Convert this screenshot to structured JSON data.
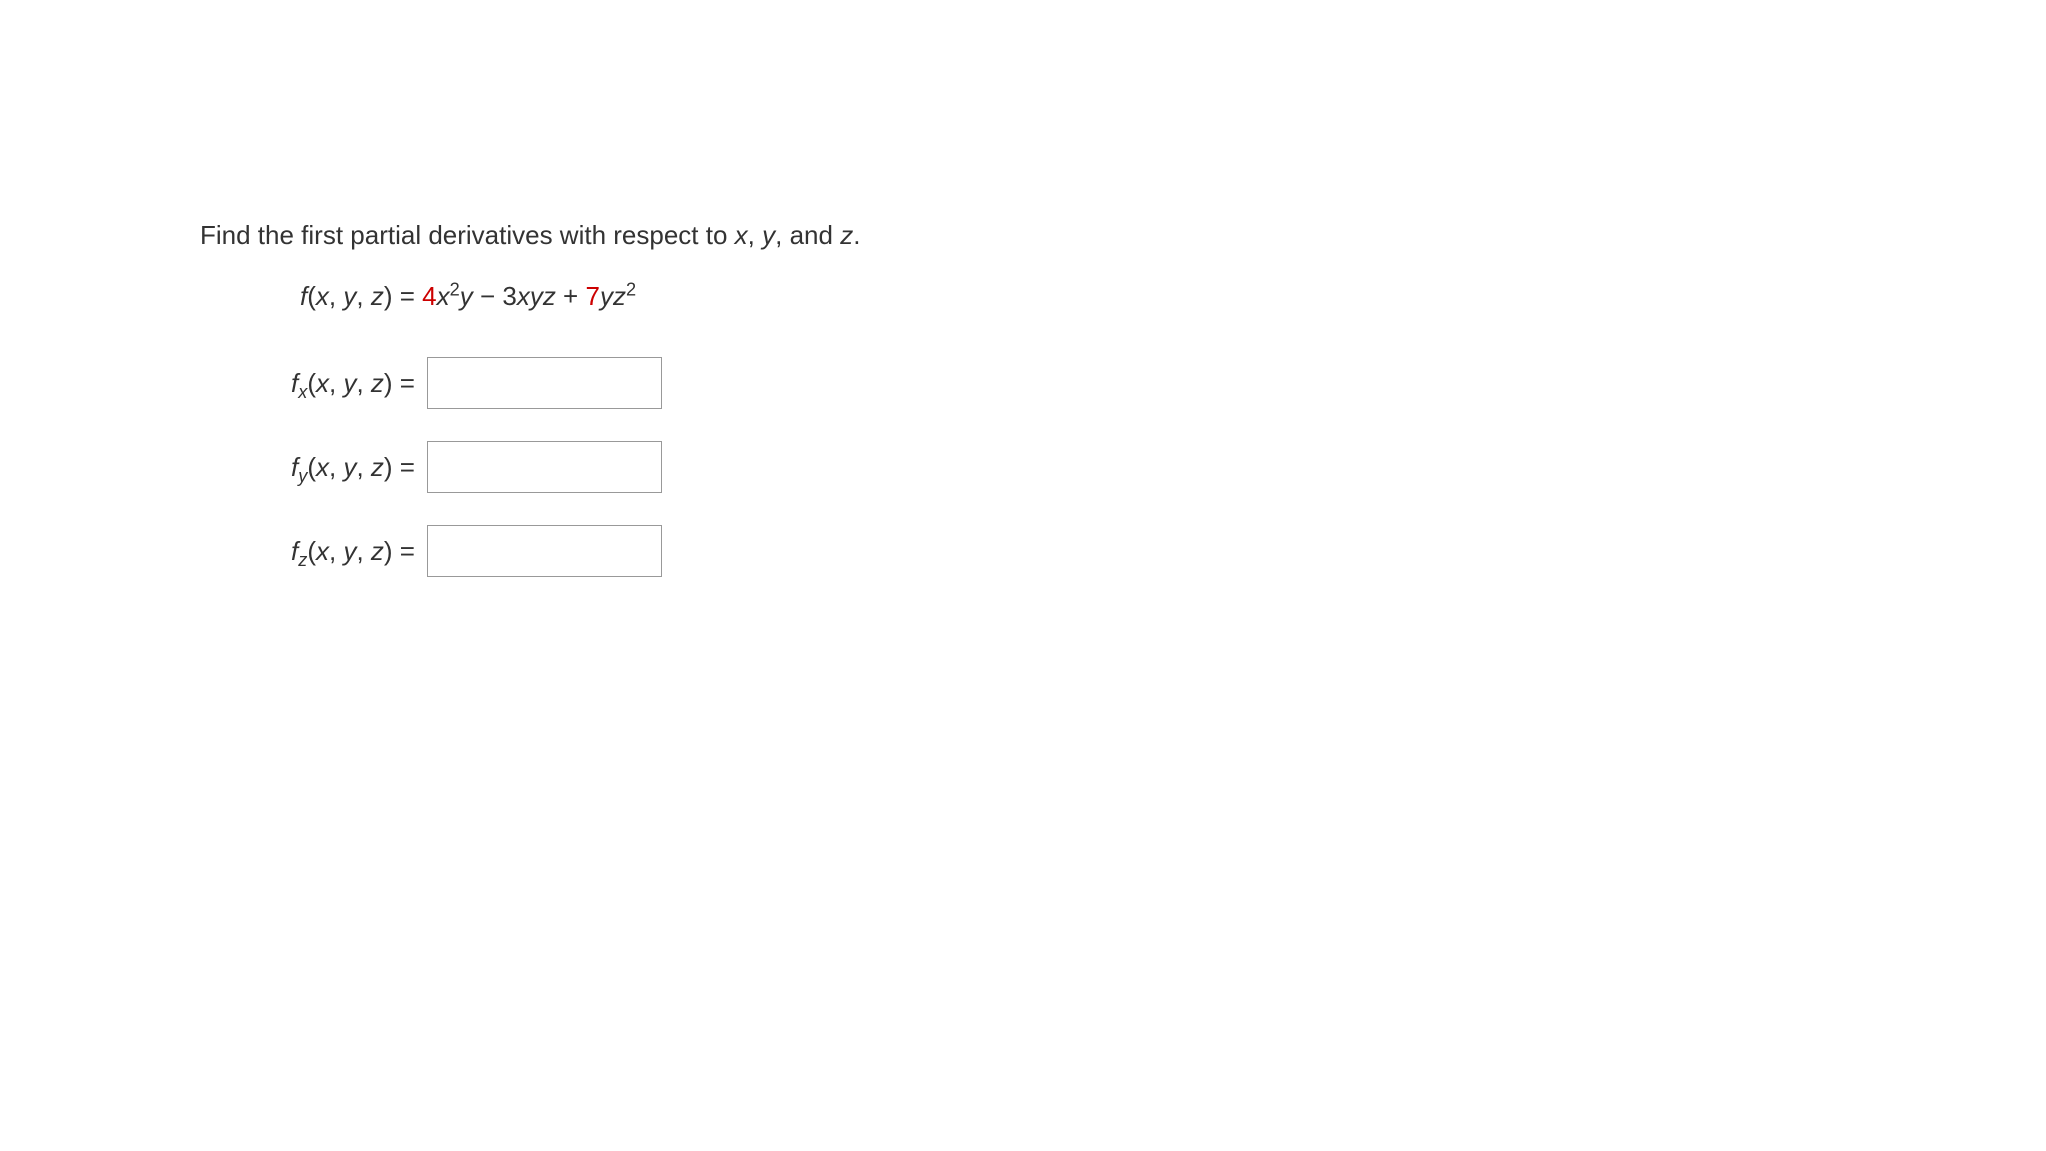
{
  "prompt": {
    "text_before_vars": "Find the first partial derivatives with respect to ",
    "var_x": "x",
    "comma1": ", ",
    "var_y": "y",
    "comma2": ", and ",
    "var_z": "z",
    "period": "."
  },
  "equation": {
    "f": "f",
    "open": "(",
    "x": "x",
    "c1": ", ",
    "y": "y",
    "c2": ", ",
    "z": "z",
    "close": ")",
    "eq": " = ",
    "coef1": "4",
    "term1_x": "x",
    "exp1": "2",
    "term1_y": "y",
    "minus": " − ",
    "coef2": "3",
    "term2_x": "x",
    "term2_y": "y",
    "term2_z": "z",
    "plus": " + ",
    "coef3": "7",
    "term3_y": "y",
    "term3_z": "z",
    "exp3": "2"
  },
  "rows": {
    "fx": {
      "f": "f",
      "sub": "x",
      "open": "(",
      "x": "x",
      "c1": ", ",
      "y": "y",
      "c2": ", ",
      "z": "z",
      "close": ")",
      "eq": "  =",
      "value": ""
    },
    "fy": {
      "f": "f",
      "sub": "y",
      "open": "(",
      "x": "x",
      "c1": ", ",
      "y": "y",
      "c2": ", ",
      "z": "z",
      "close": ")",
      "eq": "  =",
      "value": ""
    },
    "fz": {
      "f": "f",
      "sub": "z",
      "open": "(",
      "x": "x",
      "c1": ", ",
      "y": "y",
      "c2": ", ",
      "z": "z",
      "close": ")",
      "eq": "  =",
      "value": ""
    }
  },
  "colors": {
    "text": "#333333",
    "red": "#cc0000",
    "border": "#999999",
    "background": "#ffffff"
  },
  "typography": {
    "font_family": "Verdana, Geneva, sans-serif",
    "base_fontsize": 26,
    "sup_scale": 0.7,
    "sub_scale": 0.7
  },
  "layout": {
    "input_width": 235,
    "input_height": 52,
    "label_min_width": 205
  }
}
